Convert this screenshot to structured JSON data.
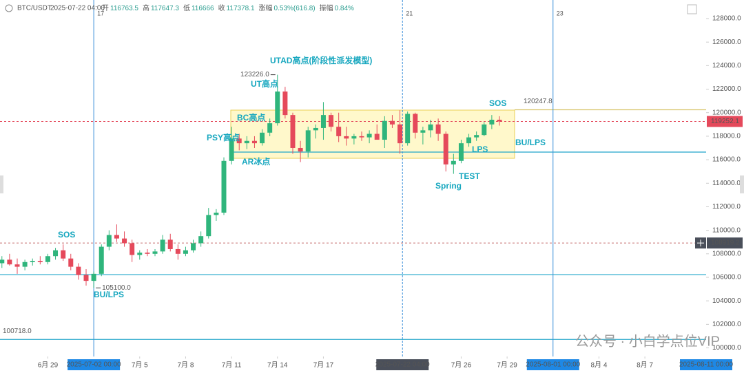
{
  "header": {
    "symbol": "BTC/USDT",
    "time": "2025-07-22 04:00",
    "fields": [
      {
        "label": "开",
        "value": 116763.5
      },
      {
        "label": "高",
        "value": 117647.3
      },
      {
        "label": "低",
        "value": 116666.0
      },
      {
        "label": "收",
        "value": 117378.1
      },
      {
        "label": "涨幅",
        "value": "0.53%(616.8)"
      },
      {
        "label": "振幅",
        "value": "0.84%"
      }
    ]
  },
  "chart_data": {
    "type": "candlestick",
    "xlim": [
      "2025-06-25 21:00",
      "2025-08-11 00:00"
    ],
    "ylim": [
      99270,
      129580
    ],
    "yticks": [
      {
        "value": 100000,
        "label": "100000.0"
      },
      {
        "value": 102000,
        "label": "102000.0"
      },
      {
        "value": 104000,
        "label": "104000.0"
      },
      {
        "value": 106000,
        "label": "106000.0"
      },
      {
        "value": 108000,
        "label": "108000.0"
      },
      {
        "value": 110000,
        "label": "110000.0"
      },
      {
        "value": 112000,
        "label": "112000.0"
      },
      {
        "value": 114000,
        "label": "114000.0"
      },
      {
        "value": 116000,
        "label": "116000.0"
      },
      {
        "value": 118000,
        "label": "118000.0"
      },
      {
        "value": 120000,
        "label": "120000.0"
      },
      {
        "value": 122000,
        "label": "122000.0"
      },
      {
        "value": 124000,
        "label": "124000.0"
      },
      {
        "value": 126000,
        "label": "126000.0"
      },
      {
        "value": 128000,
        "label": "128000.0"
      }
    ],
    "xticks": [
      {
        "value": "2025-06-29",
        "label": "6月 29"
      },
      {
        "value": "2025-07-05",
        "label": "7月 5"
      },
      {
        "value": "2025-07-08",
        "label": "7月 8"
      },
      {
        "value": "2025-07-11",
        "label": "7月 11"
      },
      {
        "value": "2025-07-14",
        "label": "7月 14"
      },
      {
        "value": "2025-07-17",
        "label": "7月 17"
      },
      {
        "value": "2025-07-26",
        "label": "7月 26"
      },
      {
        "value": "2025-07-29",
        "label": "7月 29"
      },
      {
        "value": "2025-08-04",
        "label": "8月 4"
      },
      {
        "value": "2025-08-07",
        "label": "8月 7"
      }
    ],
    "up_color": "#2fb57c",
    "down_color": "#e5495b",
    "x": [
      "2025-06-26 00:00",
      "2025-06-26 12:00",
      "2025-06-27 00:00",
      "2025-06-27 12:00",
      "2025-06-28 00:00",
      "2025-06-28 12:00",
      "2025-06-29 00:00",
      "2025-06-29 12:00",
      "2025-06-30 00:00",
      "2025-06-30 12:00",
      "2025-07-01 00:00",
      "2025-07-01 12:00",
      "2025-07-02 00:00",
      "2025-07-02 12:00",
      "2025-07-03 00:00",
      "2025-07-03 12:00",
      "2025-07-04 00:00",
      "2025-07-04 12:00",
      "2025-07-05 00:00",
      "2025-07-05 12:00",
      "2025-07-06 00:00",
      "2025-07-06 12:00",
      "2025-07-07 00:00",
      "2025-07-07 12:00",
      "2025-07-08 00:00",
      "2025-07-08 12:00",
      "2025-07-09 00:00",
      "2025-07-09 12:00",
      "2025-07-10 00:00",
      "2025-07-10 12:00",
      "2025-07-11 00:00",
      "2025-07-11 12:00",
      "2025-07-12 00:00",
      "2025-07-12 12:00",
      "2025-07-13 00:00",
      "2025-07-13 12:00",
      "2025-07-14 00:00",
      "2025-07-14 12:00",
      "2025-07-15 00:00",
      "2025-07-15 12:00",
      "2025-07-16 00:00",
      "2025-07-16 12:00",
      "2025-07-17 00:00",
      "2025-07-17 12:00",
      "2025-07-18 00:00",
      "2025-07-18 12:00",
      "2025-07-19 00:00",
      "2025-07-19 12:00",
      "2025-07-20 00:00",
      "2025-07-20 12:00",
      "2025-07-21 00:00",
      "2025-07-21 12:00",
      "2025-07-22 00:00",
      "2025-07-22 12:00",
      "2025-07-23 00:00",
      "2025-07-23 12:00",
      "2025-07-24 00:00",
      "2025-07-24 12:00",
      "2025-07-25 00:00",
      "2025-07-25 12:00",
      "2025-07-26 00:00",
      "2025-07-26 12:00",
      "2025-07-27 00:00",
      "2025-07-27 12:00",
      "2025-07-28 00:00",
      "2025-07-28 12:00"
    ],
    "open": [
      107200,
      107500,
      107100,
      106900,
      107300,
      107400,
      107300,
      107800,
      108300,
      107600,
      106900,
      106200,
      105700,
      106300,
      108600,
      109600,
      109300,
      108900,
      107900,
      108100,
      108000,
      108200,
      109200,
      108400,
      108000,
      108300,
      108900,
      109500,
      111300,
      111500,
      115900,
      117800,
      117400,
      117600,
      117400,
      118300,
      119100,
      121800,
      119800,
      117000,
      116700,
      118500,
      118700,
      119800,
      118800,
      118000,
      117800,
      118000,
      117900,
      118200,
      117700,
      119300,
      119000,
      117400,
      119900,
      118300,
      118500,
      119000,
      118200,
      115600,
      115900,
      117400,
      117900,
      118100,
      119000,
      119400
    ],
    "high": [
      107800,
      108000,
      107600,
      107500,
      107600,
      107800,
      108000,
      108500,
      108800,
      108000,
      107200,
      106700,
      106500,
      108800,
      110000,
      110500,
      109900,
      109200,
      108300,
      108400,
      108400,
      109600,
      109700,
      108800,
      108600,
      109200,
      109900,
      111900,
      111800,
      116200,
      118800,
      118200,
      118000,
      118000,
      118600,
      119500,
      123226,
      122200,
      120000,
      117600,
      118800,
      119000,
      120900,
      120000,
      120000,
      118800,
      118200,
      118400,
      118500,
      119000,
      119700,
      119800,
      120200,
      120100,
      120000,
      118800,
      119400,
      119500,
      118400,
      116500,
      117700,
      118200,
      118400,
      119200,
      119800,
      119700
    ],
    "low": [
      106800,
      107000,
      106300,
      106600,
      107000,
      107100,
      107100,
      107500,
      107400,
      106600,
      105800,
      105300,
      105100,
      106100,
      108300,
      109000,
      108600,
      107300,
      107500,
      107800,
      107800,
      108000,
      108200,
      107500,
      107800,
      108100,
      108600,
      109300,
      110800,
      111300,
      115600,
      116800,
      116900,
      117000,
      117200,
      118000,
      118900,
      119500,
      116500,
      115800,
      116200,
      117800,
      117700,
      118400,
      117500,
      117200,
      117300,
      117600,
      117400,
      117800,
      117000,
      118700,
      116500,
      117200,
      117800,
      117300,
      117900,
      117600,
      115000,
      114800,
      115700,
      117100,
      117600,
      118000,
      118600,
      118900
    ],
    "close": [
      107500,
      107100,
      106900,
      107300,
      107400,
      107300,
      107800,
      108300,
      107600,
      106900,
      106200,
      105700,
      106300,
      108600,
      109600,
      109300,
      108900,
      107900,
      108100,
      108000,
      108200,
      109200,
      108400,
      108000,
      108300,
      108900,
      109500,
      111300,
      111500,
      115900,
      117800,
      117400,
      117600,
      117400,
      118300,
      119100,
      121800,
      119800,
      117000,
      116700,
      118500,
      118700,
      119800,
      118800,
      118000,
      117800,
      118000,
      117900,
      118200,
      117700,
      119300,
      119000,
      117400,
      119900,
      118300,
      118500,
      119000,
      118200,
      115600,
      115900,
      117400,
      117900,
      118100,
      119000,
      119400,
      119252.1
    ],
    "levels": [
      {
        "value": 106230,
        "color": "#1fa5c9"
      },
      {
        "value": 100718,
        "label": "100718.0",
        "color": "#1fa5c9"
      },
      {
        "value": 116650,
        "color": "#1fa5c9"
      },
      {
        "value": 120247.8,
        "label": "120247.8",
        "color": "#d8c46a"
      }
    ],
    "extremes": [
      {
        "value": 123226,
        "label": "123226.0"
      },
      {
        "value": 105100,
        "label": "105100.0"
      }
    ],
    "markers": [
      {
        "time": "2025-07-02 00:00",
        "label": "17",
        "color": "#1e88e5"
      },
      {
        "time": "2025-07-22 04:00",
        "label": "21",
        "color": "#4a4f5a"
      },
      {
        "time": "2025-08-01 00:00",
        "label": "23",
        "color": "#1e88e5"
      }
    ],
    "cursor_time": "2025-08-11 00:00",
    "last_price": {
      "value": 119252.1,
      "label": "119252.1"
    },
    "cursor_price": {
      "value": 108919.2,
      "label": "108919.2"
    },
    "annotations": [
      "UTAD高点(阶段性派发模型)",
      "UT高点",
      "BC高点",
      "PSY高点",
      "AR冰点",
      "SOS",
      "BU/LPS",
      "SOS",
      "BU/LPS",
      "LPS",
      "TEST",
      "Spring"
    ],
    "watermark": "公众号 · 小白学点位VIP"
  }
}
